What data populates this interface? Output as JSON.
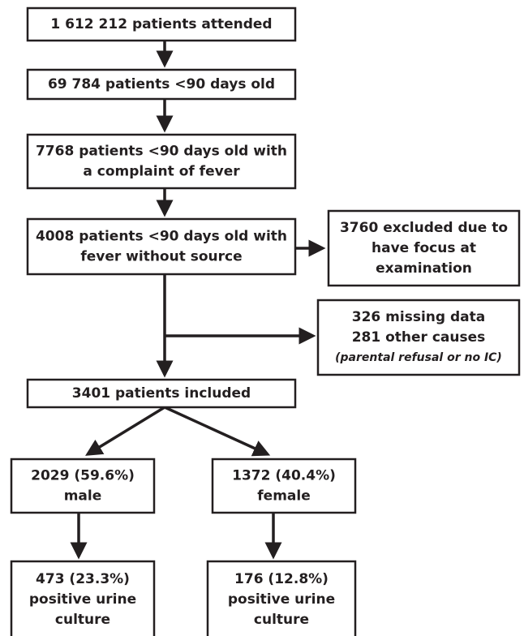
{
  "nodes": [
    {
      "lines": [
        "1 612 212 patients attended"
      ]
    },
    {
      "lines": [
        "69 784 patients <90 days old"
      ]
    },
    {
      "lines": [
        "7768 patients <90 days old with",
        "a complaint of fever"
      ]
    },
    {
      "lines": [
        "4008 patients <90 days old with",
        "fever without source"
      ]
    },
    {
      "lines": [
        "3760 excluded due to",
        "have focus at",
        "examination"
      ]
    },
    {
      "lines": [
        "326 missing data",
        "281 other causes"
      ],
      "note": "(parental refusal or no IC)"
    },
    {
      "lines": [
        "3401 patients included"
      ]
    },
    {
      "lines": [
        "2029 (59.6%)",
        "male"
      ]
    },
    {
      "lines": [
        "1372 (40.4%)",
        "female"
      ]
    },
    {
      "lines": [
        "473 (23.3%)",
        "positive urine",
        "culture"
      ]
    },
    {
      "lines": [
        "176 (12.8%)",
        "positive urine",
        "culture"
      ]
    }
  ]
}
